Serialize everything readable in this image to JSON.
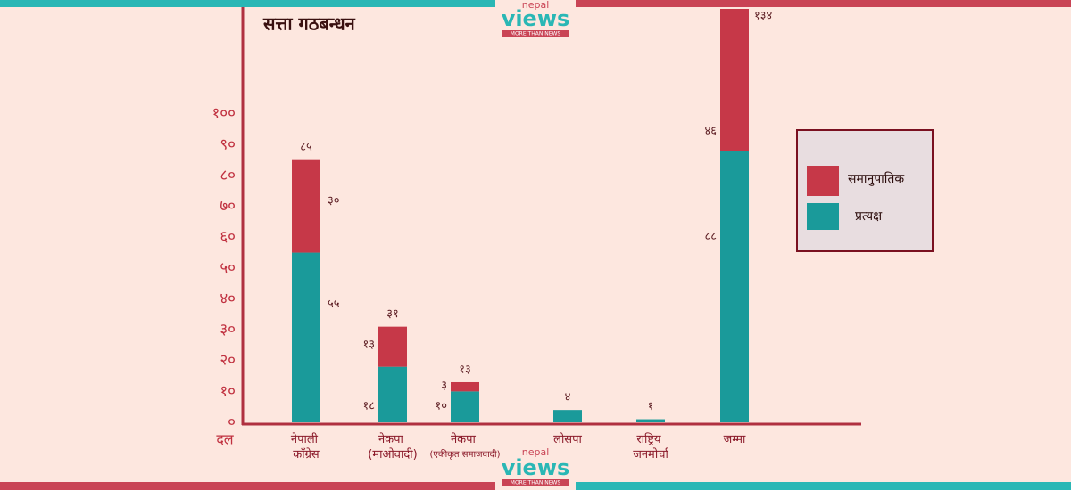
{
  "chart_data": {
    "type": "stacked-bar",
    "title": "सत्ता गठबन्धन",
    "x_label": "दल",
    "categories": [
      "नेपाली काँग्रेस",
      "नेकपा (माओवादी)",
      "नेकपा (एकीकृत समाजवादी)",
      "लोसपा",
      "राष्ट्रिय जनमोर्चा",
      "जम्मा"
    ],
    "series": [
      {
        "name": "प्रत्यक्ष",
        "color": "#1a9a9a",
        "values": [
          55,
          18,
          10,
          4,
          1,
          88
        ],
        "value_labels": [
          "५५",
          "१८",
          "१०",
          null,
          null,
          "८८"
        ]
      },
      {
        "name": "समानुपातिक",
        "color": "#c63848",
        "values": [
          30,
          13,
          3,
          0,
          0,
          46
        ],
        "value_labels": [
          "३०",
          "१३",
          "३",
          null,
          null,
          "४६"
        ]
      }
    ],
    "totals": {
      "values": [
        85,
        31,
        13,
        4,
        1,
        134
      ],
      "value_labels": [
        "८५",
        "३१",
        "१३",
        "४",
        "१",
        "१३४"
      ]
    },
    "ylim": [
      0,
      134
    ],
    "yticks": [
      {
        "value": 0,
        "label": "०"
      },
      {
        "value": 10,
        "label": "१०"
      },
      {
        "value": 20,
        "label": "२०"
      },
      {
        "value": 30,
        "label": "३०"
      },
      {
        "value": 40,
        "label": "४०"
      },
      {
        "value": 50,
        "label": "५०"
      },
      {
        "value": 60,
        "label": "६०"
      },
      {
        "value": 70,
        "label": "७०"
      },
      {
        "value": 80,
        "label": "८०"
      },
      {
        "value": 90,
        "label": "९०"
      },
      {
        "value": 100,
        "label": "१००"
      }
    ],
    "legend": "right"
  },
  "logo": {
    "top": "nepal",
    "name": "views",
    "tagline": "MORE THAN NEWS"
  }
}
